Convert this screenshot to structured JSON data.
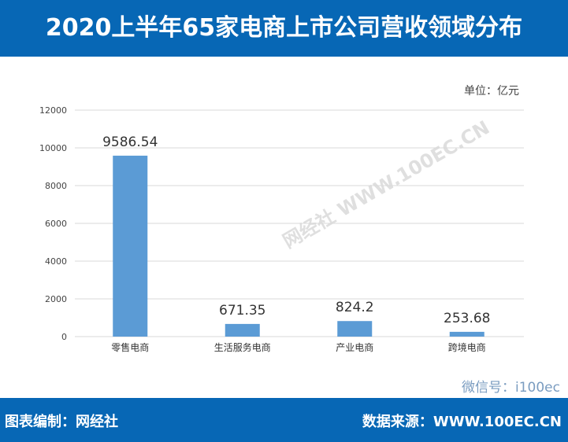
{
  "header": {
    "title": "2020上半年65家电商上市公司营收领域分布"
  },
  "unit_label": "单位：亿元",
  "footer": {
    "left": "图表编制：网经社",
    "right": "数据来源：WWW.100EC.CN",
    "overlay": "微信号：i100ec"
  },
  "watermark": "网经社 WWW.100EC.CN",
  "colors": {
    "header": "#0767b5",
    "bar": "#5b9bd5",
    "grid": "#d9d9d9"
  },
  "chart_data": {
    "type": "bar",
    "categories": [
      "零售电商",
      "生活服务电商",
      "产业电商",
      "跨境电商"
    ],
    "values": [
      9586.54,
      671.35,
      824.2,
      253.68
    ],
    "value_labels": [
      "9586.54",
      "671.35",
      "824.2",
      "253.68"
    ],
    "ylim": [
      0,
      12000
    ],
    "yticks": [
      0,
      2000,
      4000,
      6000,
      8000,
      10000,
      12000
    ],
    "grid": true,
    "legend": "none"
  }
}
